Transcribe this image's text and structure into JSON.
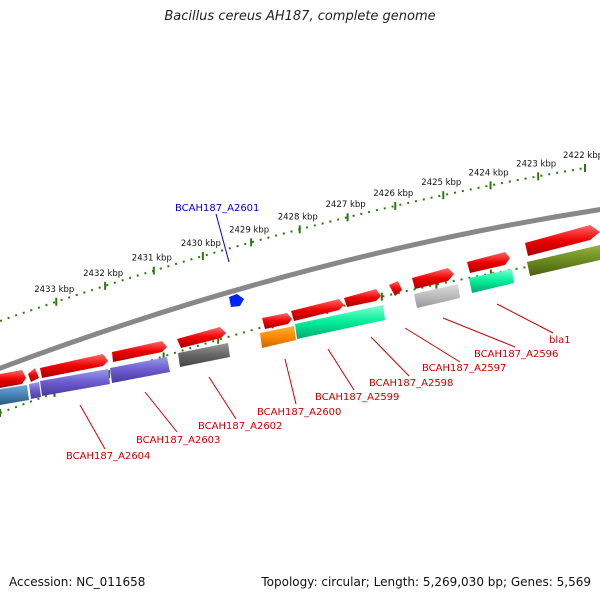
{
  "title": "Bacillus cereus AH187, complete genome",
  "footer": {
    "accession": "Accession: NC_011658",
    "topology": "Topology: circular; Length: 5,269,030 bp; Genes: 5,569"
  },
  "ruler": {
    "ticks": [
      {
        "label": "2422 kbp",
        "pos": 0.0
      },
      {
        "label": "2423 kbp",
        "pos": 0.082
      },
      {
        "label": "2424 kbp",
        "pos": 0.165
      },
      {
        "label": "2425 kbp",
        "pos": 0.247
      },
      {
        "label": "2426 kbp",
        "pos": 0.33
      },
      {
        "label": "2427 kbp",
        "pos": 0.412
      },
      {
        "label": "2428 kbp",
        "pos": 0.494
      },
      {
        "label": "2429 kbp",
        "pos": 0.577
      },
      {
        "label": "2430 kbp",
        "pos": 0.659
      },
      {
        "label": "2431 kbp",
        "pos": 0.742
      },
      {
        "label": "2432 kbp",
        "pos": 0.824
      },
      {
        "label": "2433 kbp",
        "pos": 0.906
      }
    ]
  },
  "gene_labels": [
    {
      "id": "g2601",
      "label": "BCAH187_A2601",
      "color": "#0000cc"
    },
    {
      "id": "g2596",
      "label": "bla1",
      "color": "#cc0000"
    },
    {
      "id": "g2596b",
      "label": "BCAH187_A2596",
      "color": "#cc0000"
    },
    {
      "id": "g2597",
      "label": "BCAH187_A2597",
      "color": "#cc0000"
    },
    {
      "id": "g2598",
      "label": "BCAH187_A2598",
      "color": "#cc0000"
    },
    {
      "id": "g2599",
      "label": "BCAH187_A2599",
      "color": "#cc0000"
    },
    {
      "id": "g2600",
      "label": "BCAH187_A2600",
      "color": "#cc0000"
    },
    {
      "id": "g2602",
      "label": "BCAH187_A2602",
      "color": "#cc0000"
    },
    {
      "id": "g2603",
      "label": "BCAH187_A2603",
      "color": "#cc0000"
    },
    {
      "id": "g2604",
      "label": "BCAH187_A2604",
      "color": "#cc0000"
    }
  ],
  "colors": {
    "gene_red": "#ee0000",
    "backbone": "#888888",
    "tick_green": "#2a7a10",
    "blue_marker": "#0022ff"
  }
}
